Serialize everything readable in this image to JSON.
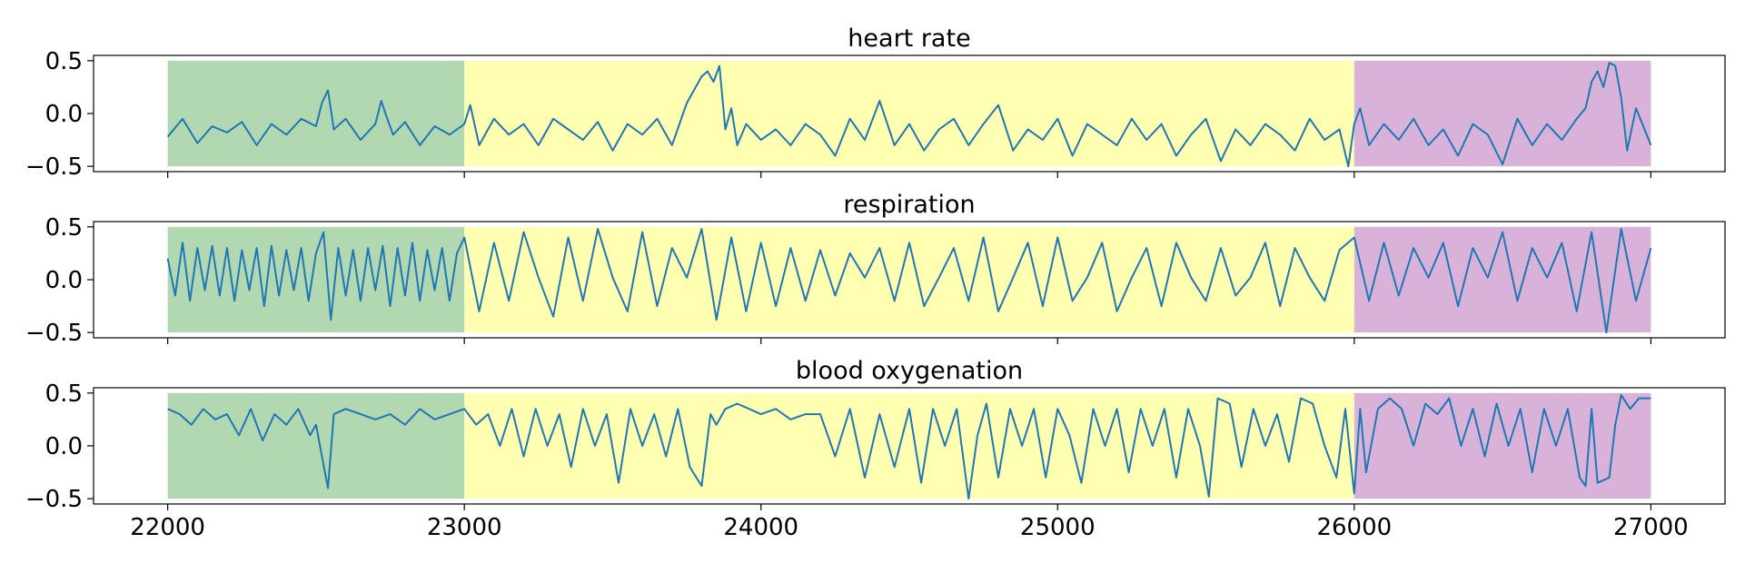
{
  "chart_data": [
    {
      "type": "line",
      "title": "heart rate",
      "xlim": [
        21750,
        27250
      ],
      "ylim": [
        -0.55,
        0.55
      ],
      "yticks": [
        0.5,
        0.0,
        -0.5
      ],
      "ytick_labels": [
        "0.5",
        "0.0",
        "−0.5"
      ],
      "xticks": [
        22000,
        23000,
        24000,
        25000,
        26000,
        27000
      ],
      "xtick_labels": [
        "22000",
        "23000",
        "24000",
        "25000",
        "26000",
        "27000"
      ],
      "show_xtick_labels": false,
      "grid": false,
      "regions": [
        {
          "x": [
            22000,
            23000
          ],
          "y": [
            -0.5,
            0.5
          ],
          "color": "#b2d8b2"
        },
        {
          "x": [
            23000,
            26000
          ],
          "y": [
            -0.5,
            0.5
          ],
          "color": "#ffffb2"
        },
        {
          "x": [
            26000,
            27000
          ],
          "y": [
            -0.5,
            0.5
          ],
          "color": "#d8b2d8"
        }
      ],
      "series": [
        {
          "color": "#1f77b4",
          "x": [
            22000,
            22050,
            22100,
            22150,
            22200,
            22250,
            22300,
            22350,
            22400,
            22450,
            22500,
            22520,
            22540,
            22560,
            22600,
            22650,
            22700,
            22720,
            22740,
            22760,
            22800,
            22850,
            22900,
            22950,
            23000,
            23020,
            23050,
            23100,
            23150,
            23200,
            23250,
            23300,
            23350,
            23400,
            23450,
            23500,
            23550,
            23600,
            23650,
            23700,
            23750,
            23780,
            23800,
            23820,
            23840,
            23860,
            23880,
            23900,
            23920,
            23950,
            24000,
            24050,
            24100,
            24150,
            24200,
            24250,
            24300,
            24350,
            24400,
            24450,
            24500,
            24550,
            24600,
            24650,
            24700,
            24750,
            24800,
            24850,
            24900,
            24950,
            25000,
            25050,
            25100,
            25150,
            25200,
            25250,
            25300,
            25350,
            25400,
            25450,
            25500,
            25550,
            25600,
            25650,
            25700,
            25750,
            25800,
            25850,
            25900,
            25950,
            25980,
            26000,
            26020,
            26050,
            26100,
            26150,
            26200,
            26250,
            26300,
            26350,
            26400,
            26450,
            26500,
            26550,
            26600,
            26650,
            26700,
            26750,
            26780,
            26800,
            26820,
            26840,
            26860,
            26880,
            26900,
            26920,
            26950,
            27000
          ],
          "y": [
            -0.22,
            -0.05,
            -0.28,
            -0.12,
            -0.18,
            -0.08,
            -0.3,
            -0.1,
            -0.2,
            -0.05,
            -0.12,
            0.1,
            0.22,
            -0.15,
            -0.05,
            -0.25,
            -0.1,
            0.12,
            -0.05,
            -0.2,
            -0.08,
            -0.3,
            -0.12,
            -0.2,
            -0.1,
            0.08,
            -0.3,
            -0.05,
            -0.2,
            -0.1,
            -0.3,
            -0.05,
            -0.15,
            -0.25,
            -0.08,
            -0.35,
            -0.1,
            -0.2,
            -0.05,
            -0.3,
            0.1,
            0.25,
            0.35,
            0.4,
            0.3,
            0.45,
            -0.15,
            0.05,
            -0.3,
            -0.1,
            -0.25,
            -0.15,
            -0.3,
            -0.1,
            -0.2,
            -0.4,
            -0.05,
            -0.25,
            0.12,
            -0.3,
            -0.1,
            -0.35,
            -0.15,
            -0.05,
            -0.3,
            -0.1,
            0.08,
            -0.35,
            -0.15,
            -0.25,
            -0.05,
            -0.4,
            -0.1,
            -0.2,
            -0.3,
            -0.05,
            -0.25,
            -0.1,
            -0.4,
            -0.2,
            -0.05,
            -0.45,
            -0.15,
            -0.3,
            -0.1,
            -0.2,
            -0.35,
            -0.05,
            -0.25,
            -0.15,
            -0.5,
            -0.1,
            0.05,
            -0.3,
            -0.1,
            -0.25,
            -0.05,
            -0.3,
            -0.15,
            -0.4,
            -0.1,
            -0.2,
            -0.48,
            -0.05,
            -0.3,
            -0.1,
            -0.25,
            -0.05,
            0.05,
            0.3,
            0.4,
            0.25,
            0.48,
            0.45,
            0.15,
            -0.35,
            0.05,
            -0.3
          ]
        }
      ]
    },
    {
      "type": "line",
      "title": "respiration",
      "xlim": [
        21750,
        27250
      ],
      "ylim": [
        -0.55,
        0.55
      ],
      "yticks": [
        0.5,
        0.0,
        -0.5
      ],
      "ytick_labels": [
        "0.5",
        "0.0",
        "−0.5"
      ],
      "xticks": [
        22000,
        23000,
        24000,
        25000,
        26000,
        27000
      ],
      "xtick_labels": [
        "22000",
        "23000",
        "24000",
        "25000",
        "26000",
        "27000"
      ],
      "show_xtick_labels": false,
      "grid": false,
      "regions": [
        {
          "x": [
            22000,
            23000
          ],
          "y": [
            -0.5,
            0.5
          ],
          "color": "#b2d8b2"
        },
        {
          "x": [
            23000,
            26000
          ],
          "y": [
            -0.5,
            0.5
          ],
          "color": "#ffffb2"
        },
        {
          "x": [
            26000,
            27000
          ],
          "y": [
            -0.5,
            0.5
          ],
          "color": "#d8b2d8"
        }
      ],
      "series": [
        {
          "color": "#1f77b4",
          "x": [
            22000,
            22025,
            22050,
            22075,
            22100,
            22125,
            22150,
            22175,
            22200,
            22225,
            22250,
            22275,
            22300,
            22325,
            22350,
            22375,
            22400,
            22425,
            22450,
            22475,
            22500,
            22525,
            22550,
            22575,
            22600,
            22625,
            22650,
            22675,
            22700,
            22725,
            22750,
            22775,
            22800,
            22825,
            22850,
            22875,
            22900,
            22925,
            22950,
            22975,
            23000,
            23050,
            23100,
            23150,
            23200,
            23250,
            23300,
            23350,
            23400,
            23450,
            23500,
            23550,
            23600,
            23650,
            23700,
            23750,
            23800,
            23850,
            23900,
            23950,
            24000,
            24050,
            24100,
            24150,
            24200,
            24250,
            24300,
            24350,
            24400,
            24450,
            24500,
            24550,
            24600,
            24650,
            24700,
            24750,
            24800,
            24850,
            24900,
            24950,
            25000,
            25050,
            25100,
            25150,
            25200,
            25250,
            25300,
            25350,
            25400,
            25450,
            25500,
            25550,
            25600,
            25650,
            25700,
            25750,
            25800,
            25850,
            25900,
            25950,
            26000,
            26050,
            26100,
            26150,
            26200,
            26250,
            26300,
            26350,
            26400,
            26450,
            26500,
            26550,
            26600,
            26650,
            26700,
            26750,
            26800,
            26850,
            26900,
            26950,
            27000
          ],
          "y": [
            0.2,
            -0.15,
            0.35,
            -0.2,
            0.3,
            -0.1,
            0.32,
            -0.15,
            0.3,
            -0.2,
            0.28,
            -0.1,
            0.3,
            -0.25,
            0.32,
            -0.15,
            0.28,
            -0.1,
            0.3,
            -0.2,
            0.25,
            0.45,
            -0.38,
            0.3,
            -0.15,
            0.28,
            -0.2,
            0.3,
            -0.1,
            0.32,
            -0.25,
            0.3,
            -0.15,
            0.35,
            -0.2,
            0.28,
            -0.1,
            0.3,
            -0.2,
            0.25,
            0.4,
            -0.3,
            0.35,
            -0.2,
            0.45,
            0.02,
            -0.35,
            0.4,
            -0.2,
            0.48,
            0.02,
            -0.3,
            0.45,
            -0.25,
            0.3,
            0.02,
            0.48,
            -0.38,
            0.4,
            -0.3,
            0.35,
            -0.25,
            0.3,
            -0.2,
            0.28,
            -0.15,
            0.25,
            0.02,
            0.3,
            -0.2,
            0.35,
            -0.25,
            0.02,
            0.3,
            -0.2,
            0.4,
            -0.3,
            0.02,
            0.35,
            -0.25,
            0.4,
            -0.2,
            0.02,
            0.35,
            -0.3,
            0.02,
            0.3,
            -0.25,
            0.35,
            0.02,
            -0.2,
            0.3,
            -0.15,
            0.02,
            0.35,
            -0.25,
            0.3,
            0.02,
            -0.2,
            0.28,
            0.4,
            -0.2,
            0.35,
            -0.15,
            0.3,
            0.02,
            0.35,
            -0.25,
            0.3,
            0.02,
            0.45,
            -0.2,
            0.3,
            0.02,
            0.35,
            -0.3,
            0.45,
            -0.5,
            0.48,
            -0.2,
            0.3
          ]
        }
      ]
    },
    {
      "type": "line",
      "title": "blood oxygenation",
      "xlim": [
        21750,
        27250
      ],
      "ylim": [
        -0.55,
        0.55
      ],
      "yticks": [
        0.5,
        0.0,
        -0.5
      ],
      "ytick_labels": [
        "0.5",
        "0.0",
        "−0.5"
      ],
      "xticks": [
        22000,
        23000,
        24000,
        25000,
        26000,
        27000
      ],
      "xtick_labels": [
        "22000",
        "23000",
        "24000",
        "25000",
        "26000",
        "27000"
      ],
      "show_xtick_labels": true,
      "grid": false,
      "regions": [
        {
          "x": [
            22000,
            23000
          ],
          "y": [
            -0.5,
            0.5
          ],
          "color": "#b2d8b2"
        },
        {
          "x": [
            23000,
            26000
          ],
          "y": [
            -0.5,
            0.5
          ],
          "color": "#ffffb2"
        },
        {
          "x": [
            26000,
            27000
          ],
          "y": [
            -0.5,
            0.5
          ],
          "color": "#d8b2d8"
        }
      ],
      "series": [
        {
          "color": "#1f77b4",
          "x": [
            22000,
            22040,
            22080,
            22120,
            22160,
            22200,
            22240,
            22280,
            22320,
            22360,
            22400,
            22440,
            22480,
            22500,
            22520,
            22540,
            22560,
            22600,
            22650,
            22700,
            22750,
            22800,
            22850,
            22900,
            22950,
            23000,
            23040,
            23080,
            23120,
            23160,
            23200,
            23240,
            23280,
            23320,
            23360,
            23400,
            23440,
            23480,
            23520,
            23560,
            23600,
            23640,
            23680,
            23720,
            23760,
            23800,
            23830,
            23850,
            23880,
            23920,
            23960,
            24000,
            24050,
            24100,
            24150,
            24200,
            24250,
            24300,
            24350,
            24400,
            24450,
            24500,
            24540,
            24580,
            24620,
            24660,
            24700,
            24730,
            24760,
            24800,
            24840,
            24880,
            24920,
            24960,
            25000,
            25040,
            25080,
            25120,
            25160,
            25200,
            25240,
            25280,
            25320,
            25360,
            25400,
            25440,
            25480,
            25510,
            25540,
            25580,
            25620,
            25660,
            25700,
            25740,
            25780,
            25820,
            25860,
            25900,
            25940,
            25970,
            26000,
            26020,
            26040,
            26080,
            26120,
            26160,
            26200,
            26240,
            26280,
            26320,
            26360,
            26400,
            26440,
            26480,
            26520,
            26560,
            26600,
            26640,
            26680,
            26720,
            26760,
            26780,
            26800,
            26820,
            26860,
            26880,
            26900,
            26930,
            26960,
            27000
          ],
          "y": [
            0.35,
            0.3,
            0.2,
            0.35,
            0.25,
            0.3,
            0.1,
            0.35,
            0.05,
            0.3,
            0.2,
            0.35,
            0.1,
            0.2,
            -0.1,
            -0.4,
            0.3,
            0.35,
            0.3,
            0.25,
            0.3,
            0.2,
            0.35,
            0.25,
            0.3,
            0.35,
            0.2,
            0.3,
            0.0,
            0.35,
            -0.1,
            0.35,
            0.0,
            0.3,
            -0.2,
            0.35,
            0.0,
            0.3,
            -0.35,
            0.35,
            0.0,
            0.3,
            -0.1,
            0.35,
            -0.2,
            -0.38,
            0.3,
            0.2,
            0.35,
            0.4,
            0.35,
            0.3,
            0.35,
            0.25,
            0.3,
            0.3,
            -0.1,
            0.35,
            -0.3,
            0.3,
            -0.2,
            0.35,
            -0.35,
            0.35,
            0.0,
            0.35,
            -0.5,
            0.1,
            0.4,
            -0.3,
            0.35,
            0.0,
            0.35,
            -0.3,
            0.35,
            0.1,
            -0.35,
            0.35,
            0.0,
            0.35,
            -0.25,
            0.35,
            0.0,
            0.35,
            -0.3,
            0.35,
            0.0,
            -0.48,
            0.45,
            0.4,
            -0.2,
            0.35,
            0.0,
            0.3,
            -0.15,
            0.45,
            0.4,
            0.0,
            -0.3,
            0.35,
            -0.45,
            0.35,
            -0.25,
            0.35,
            0.45,
            0.35,
            0.0,
            0.4,
            0.3,
            0.45,
            0.0,
            0.35,
            -0.1,
            0.4,
            0.0,
            0.35,
            -0.25,
            0.35,
            0.0,
            0.35,
            -0.3,
            -0.38,
            0.35,
            -0.35,
            -0.3,
            0.2,
            0.48,
            0.35,
            0.45,
            0.45
          ]
        }
      ]
    }
  ]
}
